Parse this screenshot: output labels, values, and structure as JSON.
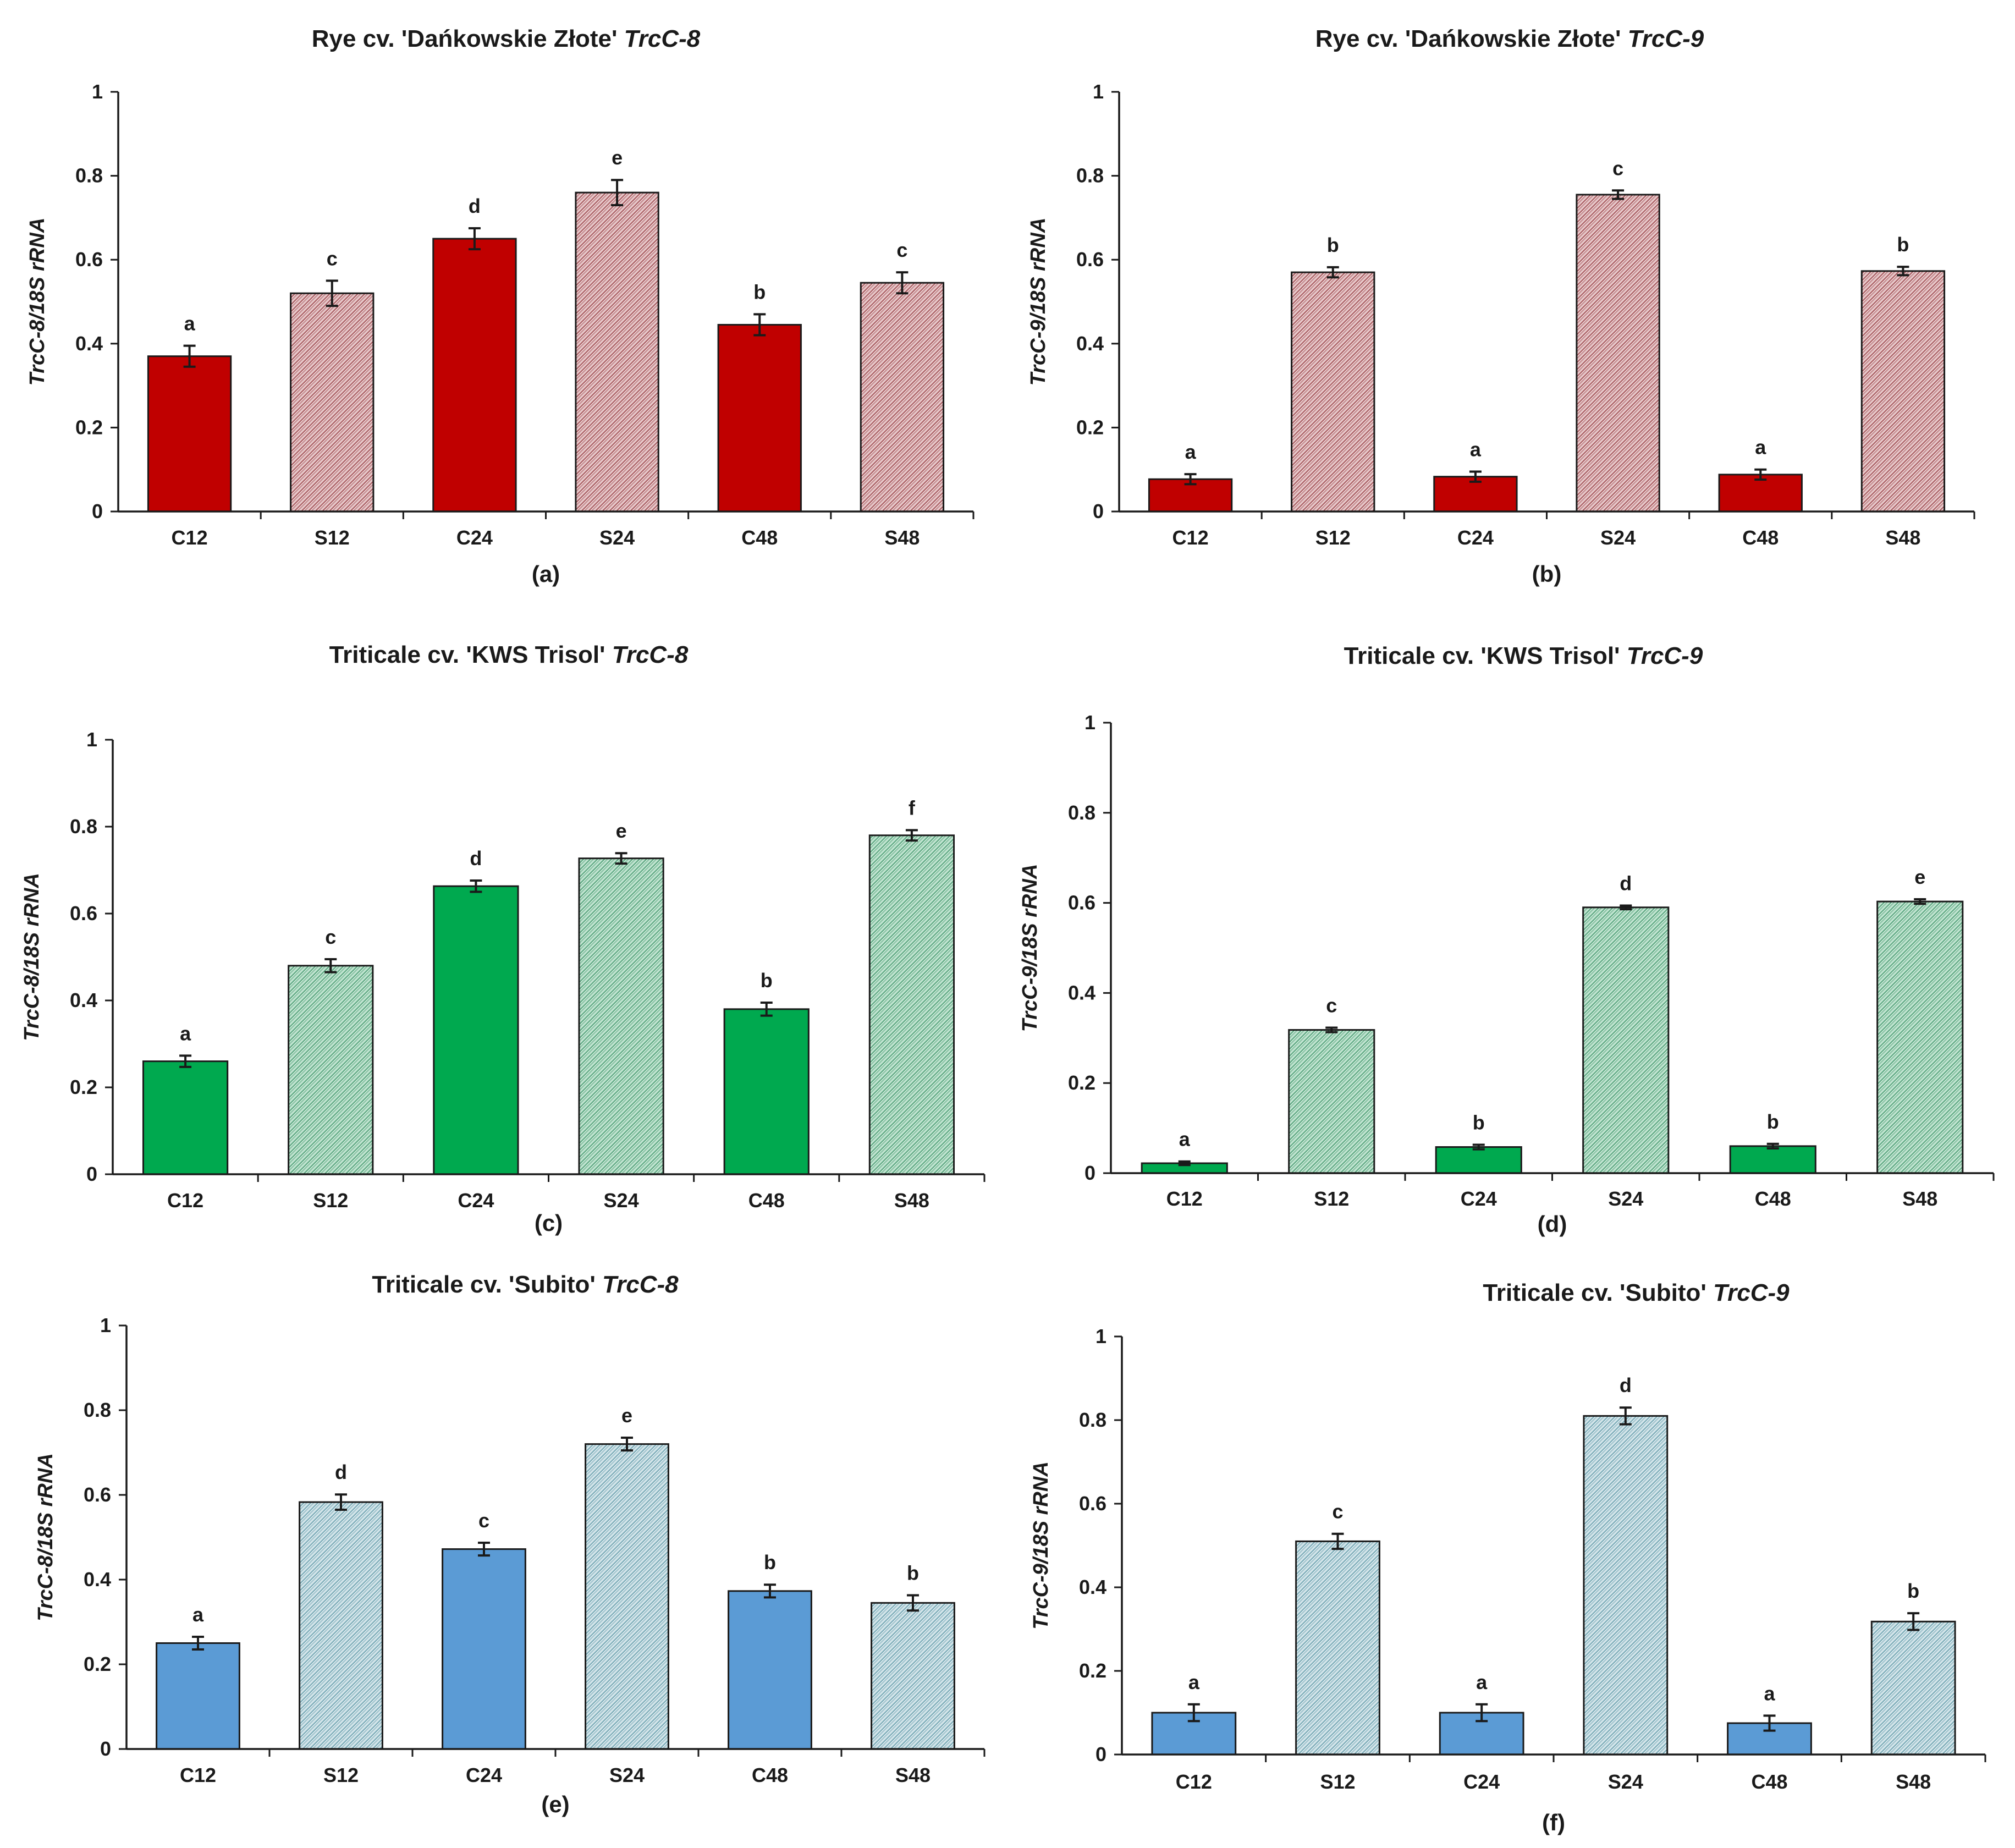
{
  "colors": {
    "red_solid": "#c00000",
    "red_hatch_bg": "#e6c6c8",
    "red_hatch_line": "#8a2a30",
    "green_solid": "#00a94f",
    "green_hatch_bg": "#bfe3cf",
    "green_hatch_line": "#2e8a5c",
    "blue_solid": "#5b9bd5",
    "blue_hatch_bg": "#d2e4e9",
    "blue_hatch_line": "#4f8e9e",
    "outline": "#1a1a1a"
  },
  "chart_data": [
    {
      "type": "bar",
      "panel_label": "(a)",
      "title_prefix": "Rye cv. 'Dańkowskie Złote'",
      "title_gene": "TrcC-8",
      "ylabel": "TrcC-8/18S rRNA",
      "ylim": [
        0,
        1
      ],
      "yticks": [
        "0",
        "0.2",
        "0.4",
        "0.6",
        "0.8",
        "1"
      ],
      "categories": [
        "C12",
        "S12",
        "C24",
        "S24",
        "C48",
        "S48"
      ],
      "values": [
        0.37,
        0.52,
        0.65,
        0.76,
        0.445,
        0.545
      ],
      "errors": [
        0.025,
        0.03,
        0.025,
        0.03,
        0.025,
        0.025
      ],
      "letters": [
        "a",
        "c",
        "d",
        "e",
        "b",
        "c"
      ],
      "fill": [
        "solid",
        "hatch",
        "solid",
        "hatch",
        "solid",
        "hatch"
      ],
      "color": "red"
    },
    {
      "type": "bar",
      "panel_label": "(b)",
      "title_prefix": "Rye cv. 'Dańkowskie Złote'",
      "title_gene": "TrcC-9",
      "ylabel": "TrcC-9/18S rRNA",
      "ylim": [
        0,
        1
      ],
      "yticks": [
        "0",
        "0.2",
        "0.4",
        "0.6",
        "0.8",
        "1"
      ],
      "categories": [
        "C12",
        "S12",
        "C24",
        "S24",
        "C48",
        "S48"
      ],
      "values": [
        0.077,
        0.57,
        0.083,
        0.755,
        0.088,
        0.573
      ],
      "errors": [
        0.012,
        0.012,
        0.012,
        0.01,
        0.012,
        0.01
      ],
      "letters": [
        "a",
        "b",
        "a",
        "c",
        "a",
        "b"
      ],
      "fill": [
        "solid",
        "hatch",
        "solid",
        "hatch",
        "solid",
        "hatch"
      ],
      "color": "red"
    },
    {
      "type": "bar",
      "panel_label": "(c)",
      "title_prefix": "Triticale cv. 'KWS Trisol'",
      "title_gene": "TrcC-8",
      "ylabel": "TrcC-8/18S rRNA",
      "ylim": [
        0,
        1
      ],
      "yticks": [
        "0",
        "0.2",
        "0.4",
        "0.6",
        "0.8",
        "1"
      ],
      "categories": [
        "C12",
        "S12",
        "C24",
        "S24",
        "C48",
        "S48"
      ],
      "values": [
        0.26,
        0.48,
        0.663,
        0.727,
        0.38,
        0.78
      ],
      "errors": [
        0.013,
        0.015,
        0.013,
        0.012,
        0.015,
        0.012
      ],
      "letters": [
        "a",
        "c",
        "d",
        "e",
        "b",
        "f"
      ],
      "fill": [
        "solid",
        "hatch",
        "solid",
        "hatch",
        "solid",
        "hatch"
      ],
      "color": "green"
    },
    {
      "type": "bar",
      "panel_label": "(d)",
      "title_prefix": "Triticale cv. 'KWS Trisol'",
      "title_gene": "TrcC-9",
      "ylabel": "TrcC-9/18S rRNA",
      "ylim": [
        0,
        1
      ],
      "yticks": [
        "0",
        "0.2",
        "0.4",
        "0.6",
        "0.8",
        "1"
      ],
      "categories": [
        "C12",
        "S12",
        "C24",
        "S24",
        "C48",
        "S48"
      ],
      "values": [
        0.022,
        0.318,
        0.058,
        0.59,
        0.06,
        0.603
      ],
      "errors": [
        0.004,
        0.005,
        0.005,
        0.004,
        0.005,
        0.005
      ],
      "letters": [
        "a",
        "c",
        "b",
        "d",
        "b",
        "e"
      ],
      "fill": [
        "solid",
        "hatch",
        "solid",
        "hatch",
        "solid",
        "hatch"
      ],
      "color": "green"
    },
    {
      "type": "bar",
      "panel_label": "(e)",
      "title_prefix": "Triticale cv. 'Subito'",
      "title_gene": "TrcC-8",
      "ylabel": "TrcC-8/18S rRNA",
      "ylim": [
        0,
        1
      ],
      "yticks": [
        "0",
        "0.2",
        "0.4",
        "0.6",
        "0.8",
        "1"
      ],
      "categories": [
        "C12",
        "S12",
        "C24",
        "S24",
        "C48",
        "S48"
      ],
      "values": [
        0.25,
        0.583,
        0.472,
        0.72,
        0.373,
        0.345
      ],
      "errors": [
        0.015,
        0.018,
        0.015,
        0.015,
        0.015,
        0.018
      ],
      "letters": [
        "a",
        "d",
        "c",
        "e",
        "b",
        "b"
      ],
      "fill": [
        "solid",
        "hatch",
        "solid",
        "hatch",
        "solid",
        "hatch"
      ],
      "color": "blue"
    },
    {
      "type": "bar",
      "panel_label": "(f)",
      "title_prefix": "Triticale cv. 'Subito'",
      "title_gene": "TrcC-9",
      "ylabel": "TrcC-9/18S rRNA",
      "ylim": [
        0,
        1
      ],
      "yticks": [
        "0",
        "0.2",
        "0.4",
        "0.6",
        "0.8",
        "1"
      ],
      "categories": [
        "C12",
        "S12",
        "C24",
        "S24",
        "C48",
        "S48"
      ],
      "values": [
        0.1,
        0.51,
        0.1,
        0.81,
        0.075,
        0.318
      ],
      "errors": [
        0.02,
        0.018,
        0.02,
        0.02,
        0.018,
        0.02
      ],
      "letters": [
        "a",
        "c",
        "a",
        "d",
        "a",
        "b"
      ],
      "fill": [
        "solid",
        "hatch",
        "solid",
        "hatch",
        "solid",
        "hatch"
      ],
      "color": "blue"
    }
  ]
}
